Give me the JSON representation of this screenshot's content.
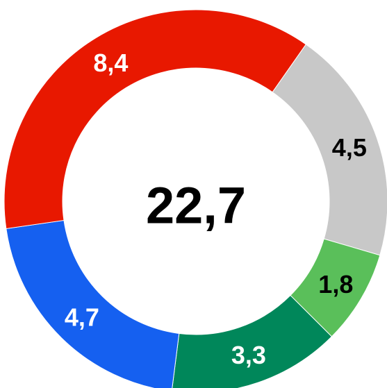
{
  "chart_data": {
    "type": "donut",
    "center_text": "22,7",
    "start_angle": 35,
    "categories": [
      null,
      null,
      null,
      null,
      null
    ],
    "values": [
      4.5,
      1.8,
      3.3,
      4.7,
      8.4
    ],
    "value_labels": [
      "4,5",
      "1,8",
      "3,3",
      "4,7",
      "8,4"
    ],
    "colors": [
      "#c8c8c8",
      "#5abf5a",
      "#00875a",
      "#1560f0",
      "#e81800"
    ],
    "label_colors": [
      "#000000",
      "#000000",
      "#ffffff",
      "#ffffff",
      "#ffffff"
    ]
  }
}
